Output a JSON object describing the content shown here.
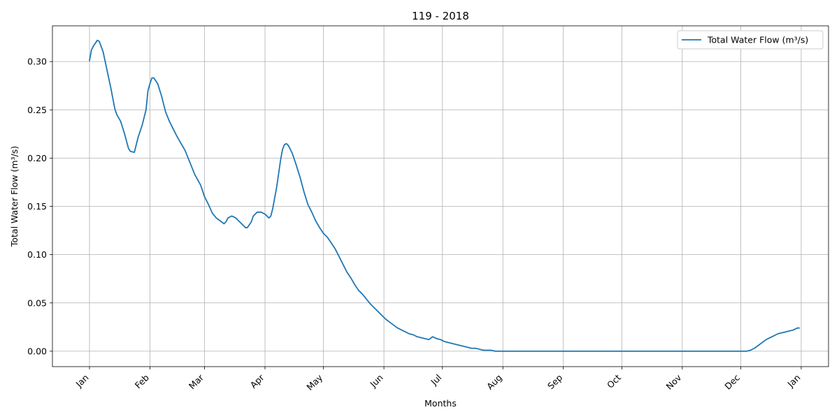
{
  "chart_data": {
    "type": "line",
    "title": "119 - 2018",
    "xlabel": "Months",
    "ylabel": "Total Water Flow (m³/s)",
    "x_tick_labels": [
      "Jan",
      "Feb",
      "Mar",
      "Apr",
      "May",
      "Jun",
      "Jul",
      "Aug",
      "Sep",
      "Oct",
      "Nov",
      "Dec",
      "Jan"
    ],
    "x_tick_dates": [
      "2018-01-01",
      "2018-02-01",
      "2018-03-01",
      "2018-04-01",
      "2018-05-01",
      "2018-06-01",
      "2018-07-01",
      "2018-08-01",
      "2018-09-01",
      "2018-10-01",
      "2018-11-01",
      "2018-12-01",
      "2019-01-01"
    ],
    "y_ticks": [
      "0.00",
      "0.05",
      "0.10",
      "0.15",
      "0.20",
      "0.25",
      "0.30"
    ],
    "ylim": [
      -0.016,
      0.337
    ],
    "xlim": [
      "2017-12-13",
      "2019-01-15"
    ],
    "grid": true,
    "legend_position": "top-right",
    "series": [
      {
        "name": "Total Water Flow (m³/s)",
        "color": "#1f77b4",
        "points": [
          [
            "2018-01-01",
            0.301
          ],
          [
            "2018-01-02",
            0.312
          ],
          [
            "2018-01-03",
            0.316
          ],
          [
            "2018-01-05",
            0.322
          ],
          [
            "2018-01-06",
            0.321
          ],
          [
            "2018-01-08",
            0.31
          ],
          [
            "2018-01-10",
            0.291
          ],
          [
            "2018-01-12",
            0.272
          ],
          [
            "2018-01-14",
            0.251
          ],
          [
            "2018-01-15",
            0.245
          ],
          [
            "2018-01-17",
            0.238
          ],
          [
            "2018-01-19",
            0.225
          ],
          [
            "2018-01-21",
            0.21
          ],
          [
            "2018-01-22",
            0.207
          ],
          [
            "2018-01-24",
            0.206
          ],
          [
            "2018-01-26",
            0.222
          ],
          [
            "2018-01-28",
            0.234
          ],
          [
            "2018-01-30",
            0.25
          ],
          [
            "2018-01-31",
            0.27
          ],
          [
            "2018-02-01",
            0.277
          ],
          [
            "2018-02-02",
            0.283
          ],
          [
            "2018-02-03",
            0.283
          ],
          [
            "2018-02-05",
            0.277
          ],
          [
            "2018-02-07",
            0.264
          ],
          [
            "2018-02-09",
            0.248
          ],
          [
            "2018-02-11",
            0.238
          ],
          [
            "2018-02-13",
            0.23
          ],
          [
            "2018-02-15",
            0.222
          ],
          [
            "2018-02-17",
            0.215
          ],
          [
            "2018-02-19",
            0.208
          ],
          [
            "2018-02-21",
            0.198
          ],
          [
            "2018-02-24",
            0.183
          ],
          [
            "2018-02-27",
            0.172
          ],
          [
            "2018-03-01",
            0.16
          ],
          [
            "2018-03-03",
            0.152
          ],
          [
            "2018-03-05",
            0.143
          ],
          [
            "2018-03-07",
            0.138
          ],
          [
            "2018-03-09",
            0.135
          ],
          [
            "2018-03-11",
            0.132
          ],
          [
            "2018-03-12",
            0.134
          ],
          [
            "2018-03-13",
            0.138
          ],
          [
            "2018-03-15",
            0.14
          ],
          [
            "2018-03-17",
            0.138
          ],
          [
            "2018-03-19",
            0.134
          ],
          [
            "2018-03-21",
            0.13
          ],
          [
            "2018-03-22",
            0.128
          ],
          [
            "2018-03-23",
            0.128
          ],
          [
            "2018-03-25",
            0.134
          ],
          [
            "2018-03-26",
            0.14
          ],
          [
            "2018-03-28",
            0.144
          ],
          [
            "2018-03-30",
            0.144
          ],
          [
            "2018-04-01",
            0.142
          ],
          [
            "2018-04-03",
            0.138
          ],
          [
            "2018-04-04",
            0.14
          ],
          [
            "2018-04-05",
            0.148
          ],
          [
            "2018-04-07",
            0.17
          ],
          [
            "2018-04-09",
            0.198
          ],
          [
            "2018-04-10",
            0.209
          ],
          [
            "2018-04-11",
            0.214
          ],
          [
            "2018-04-12",
            0.215
          ],
          [
            "2018-04-13",
            0.213
          ],
          [
            "2018-04-15",
            0.205
          ],
          [
            "2018-04-17",
            0.193
          ],
          [
            "2018-04-19",
            0.18
          ],
          [
            "2018-04-21",
            0.165
          ],
          [
            "2018-04-23",
            0.152
          ],
          [
            "2018-04-25",
            0.144
          ],
          [
            "2018-04-27",
            0.135
          ],
          [
            "2018-04-29",
            0.128
          ],
          [
            "2018-05-01",
            0.122
          ],
          [
            "2018-05-03",
            0.118
          ],
          [
            "2018-05-05",
            0.112
          ],
          [
            "2018-05-07",
            0.106
          ],
          [
            "2018-05-09",
            0.098
          ],
          [
            "2018-05-11",
            0.09
          ],
          [
            "2018-05-13",
            0.082
          ],
          [
            "2018-05-15",
            0.076
          ],
          [
            "2018-05-17",
            0.069
          ],
          [
            "2018-05-19",
            0.063
          ],
          [
            "2018-05-21",
            0.059
          ],
          [
            "2018-05-23",
            0.054
          ],
          [
            "2018-05-25",
            0.049
          ],
          [
            "2018-05-27",
            0.045
          ],
          [
            "2018-05-29",
            0.041
          ],
          [
            "2018-05-31",
            0.037
          ],
          [
            "2018-06-02",
            0.033
          ],
          [
            "2018-06-04",
            0.03
          ],
          [
            "2018-06-06",
            0.027
          ],
          [
            "2018-06-08",
            0.024
          ],
          [
            "2018-06-10",
            0.022
          ],
          [
            "2018-06-12",
            0.02
          ],
          [
            "2018-06-14",
            0.018
          ],
          [
            "2018-06-16",
            0.017
          ],
          [
            "2018-06-18",
            0.015
          ],
          [
            "2018-06-20",
            0.014
          ],
          [
            "2018-06-22",
            0.013
          ],
          [
            "2018-06-24",
            0.012
          ],
          [
            "2018-06-26",
            0.015
          ],
          [
            "2018-06-28",
            0.013
          ],
          [
            "2018-06-30",
            0.012
          ],
          [
            "2018-07-02",
            0.01
          ],
          [
            "2018-07-04",
            0.009
          ],
          [
            "2018-07-06",
            0.008
          ],
          [
            "2018-07-08",
            0.007
          ],
          [
            "2018-07-10",
            0.006
          ],
          [
            "2018-07-12",
            0.005
          ],
          [
            "2018-07-14",
            0.004
          ],
          [
            "2018-07-16",
            0.003
          ],
          [
            "2018-07-18",
            0.003
          ],
          [
            "2018-07-20",
            0.002
          ],
          [
            "2018-07-22",
            0.001
          ],
          [
            "2018-07-24",
            0.001
          ],
          [
            "2018-07-26",
            0.001
          ],
          [
            "2018-07-28",
            0.0
          ],
          [
            "2018-08-01",
            0.0
          ],
          [
            "2018-09-01",
            0.0
          ],
          [
            "2018-10-01",
            0.0
          ],
          [
            "2018-11-01",
            0.0
          ],
          [
            "2018-12-01",
            0.0
          ],
          [
            "2018-12-04",
            0.0
          ],
          [
            "2018-12-06",
            0.001
          ],
          [
            "2018-12-08",
            0.003
          ],
          [
            "2018-12-10",
            0.006
          ],
          [
            "2018-12-12",
            0.009
          ],
          [
            "2018-12-14",
            0.012
          ],
          [
            "2018-12-16",
            0.014
          ],
          [
            "2018-12-18",
            0.016
          ],
          [
            "2018-12-20",
            0.018
          ],
          [
            "2018-12-22",
            0.019
          ],
          [
            "2018-12-24",
            0.02
          ],
          [
            "2018-12-26",
            0.021
          ],
          [
            "2018-12-28",
            0.022
          ],
          [
            "2018-12-30",
            0.024
          ],
          [
            "2018-12-31",
            0.024
          ]
        ]
      }
    ]
  }
}
